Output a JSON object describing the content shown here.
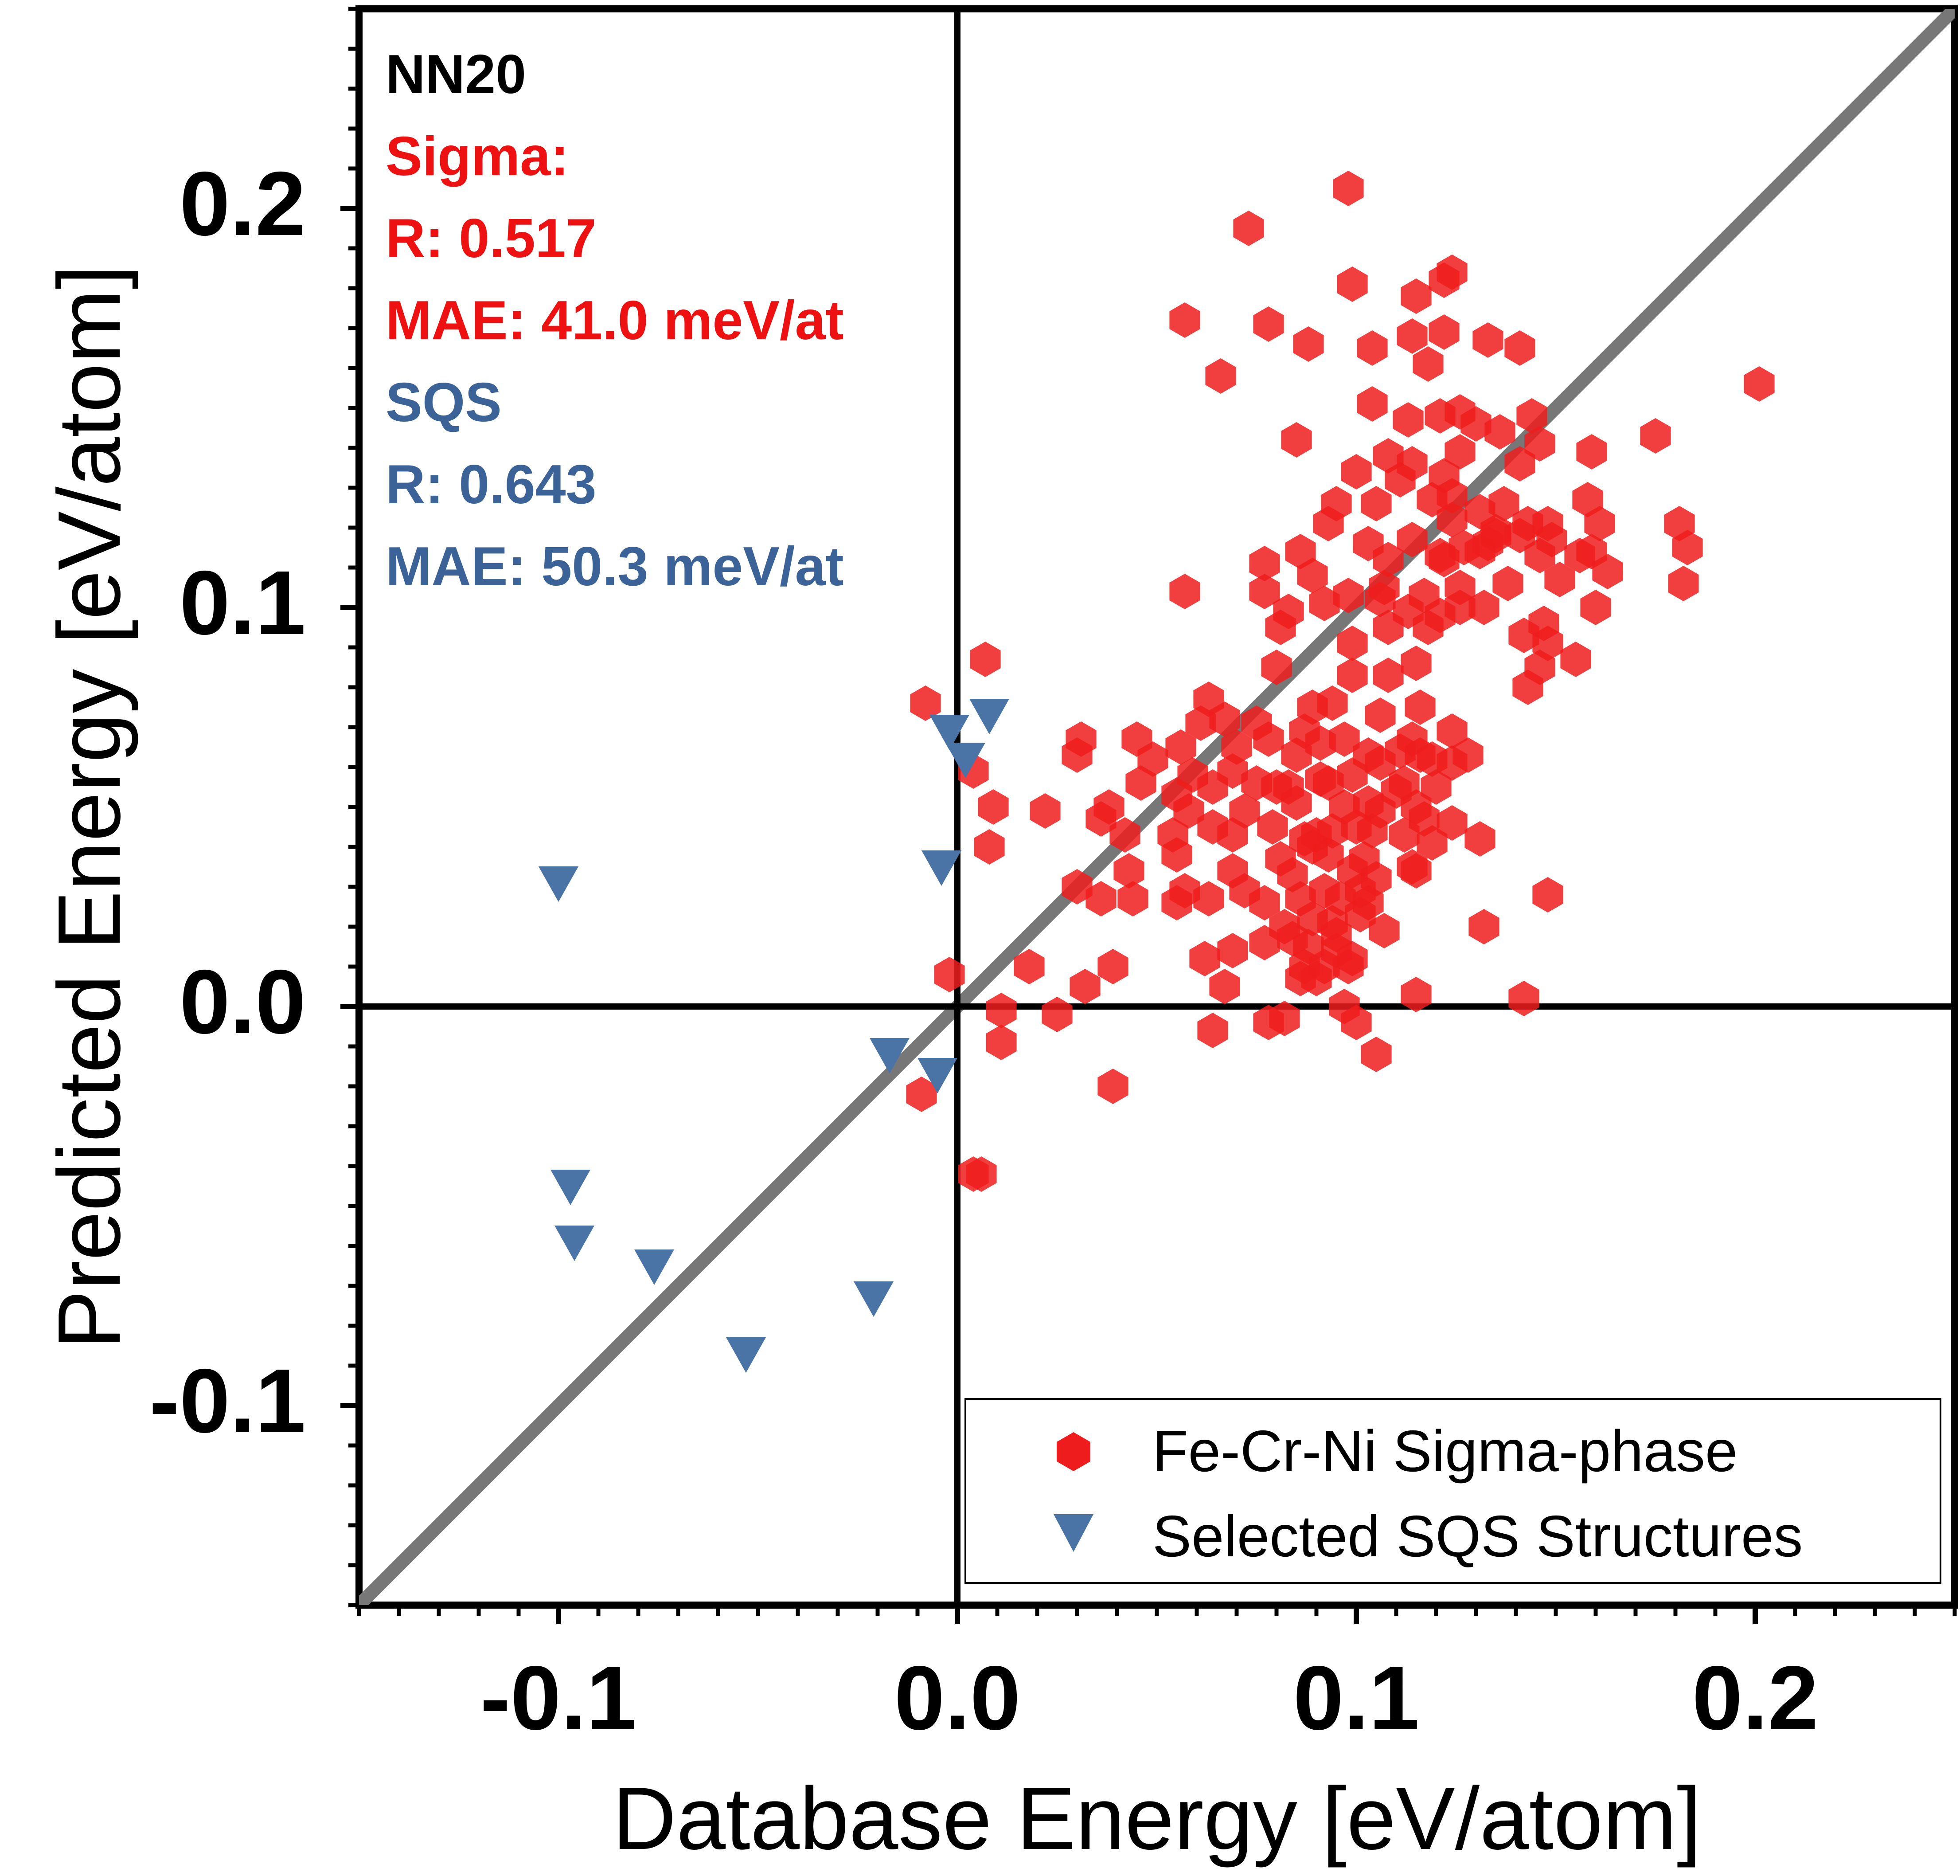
{
  "chart_data": {
    "type": "scatter",
    "title": "",
    "xlabel": "Database Energy [eV/atom]",
    "ylabel": "Predicted Energy [eV/atom]",
    "xlim": [
      -0.15,
      0.25
    ],
    "ylim": [
      -0.15,
      0.25
    ],
    "x_ticks": [
      -0.1,
      0.0,
      0.1,
      0.2
    ],
    "y_ticks": [
      -0.1,
      0.0,
      0.1,
      0.2
    ],
    "x_tick_labels": [
      "-0.1",
      "0.0",
      "0.1",
      "0.2"
    ],
    "y_tick_labels": [
      "-0.1",
      "0.0",
      "0.1",
      "0.2"
    ],
    "grid": false,
    "reference_line": "y = x",
    "legend_position": "bottom-right",
    "annotations": [
      {
        "text": "NN20",
        "color": "#000000"
      },
      {
        "text": "Sigma:",
        "color": "#ee1111"
      },
      {
        "text": "R: 0.517",
        "color": "#ee1111"
      },
      {
        "text": "MAE: 41.0 meV/at",
        "color": "#ee1111"
      },
      {
        "text": "SQS",
        "color": "#3b6397"
      },
      {
        "text": "R: 0.643",
        "color": "#3b6397"
      },
      {
        "text": "MAE: 50.3 meV/at",
        "color": "#3b6397"
      }
    ],
    "series": [
      {
        "name": "Fe-Cr-Ni Sigma-phase",
        "marker": "hexagon",
        "color": "#ee1c1c",
        "points": [
          [
            0.098,
            0.205
          ],
          [
            0.073,
            0.195
          ],
          [
            0.099,
            0.181
          ],
          [
            0.115,
            0.178
          ],
          [
            0.122,
            0.182
          ],
          [
            0.124,
            0.184
          ],
          [
            0.057,
            0.172
          ],
          [
            0.078,
            0.171
          ],
          [
            0.114,
            0.168
          ],
          [
            0.122,
            0.169
          ],
          [
            0.133,
            0.167
          ],
          [
            0.141,
            0.165
          ],
          [
            0.088,
            0.166
          ],
          [
            0.104,
            0.165
          ],
          [
            0.118,
            0.161
          ],
          [
            0.066,
            0.158
          ],
          [
            0.201,
            0.156
          ],
          [
            0.104,
            0.151
          ],
          [
            0.113,
            0.147
          ],
          [
            0.121,
            0.148
          ],
          [
            0.126,
            0.149
          ],
          [
            0.13,
            0.146
          ],
          [
            0.144,
            0.148
          ],
          [
            0.085,
            0.142
          ],
          [
            0.136,
            0.144
          ],
          [
            0.146,
            0.141
          ],
          [
            0.175,
            0.143
          ],
          [
            0.108,
            0.138
          ],
          [
            0.114,
            0.136
          ],
          [
            0.126,
            0.139
          ],
          [
            0.159,
            0.139
          ],
          [
            0.1,
            0.134
          ],
          [
            0.111,
            0.132
          ],
          [
            0.122,
            0.133
          ],
          [
            0.141,
            0.136
          ],
          [
            0.095,
            0.126
          ],
          [
            0.105,
            0.126
          ],
          [
            0.119,
            0.127
          ],
          [
            0.124,
            0.128
          ],
          [
            0.131,
            0.124
          ],
          [
            0.137,
            0.126
          ],
          [
            0.143,
            0.121
          ],
          [
            0.158,
            0.127
          ],
          [
            0.093,
            0.121
          ],
          [
            0.124,
            0.122
          ],
          [
            0.135,
            0.119
          ],
          [
            0.148,
            0.121
          ],
          [
            0.161,
            0.121
          ],
          [
            0.181,
            0.121
          ],
          [
            0.077,
            0.111
          ],
          [
            0.086,
            0.114
          ],
          [
            0.103,
            0.116
          ],
          [
            0.114,
            0.117
          ],
          [
            0.121,
            0.113
          ],
          [
            0.127,
            0.115
          ],
          [
            0.131,
            0.114
          ],
          [
            0.141,
            0.118
          ],
          [
            0.149,
            0.117
          ],
          [
            0.156,
            0.113
          ],
          [
            0.183,
            0.115
          ],
          [
            0.089,
            0.108
          ],
          [
            0.108,
            0.112
          ],
          [
            0.122,
            0.112
          ],
          [
            0.135,
            0.118
          ],
          [
            0.146,
            0.113
          ],
          [
            0.159,
            0.114
          ],
          [
            0.057,
            0.104
          ],
          [
            0.077,
            0.104
          ],
          [
            0.092,
            0.101
          ],
          [
            0.107,
            0.105
          ],
          [
            0.117,
            0.103
          ],
          [
            0.126,
            0.105
          ],
          [
            0.133,
            0.116
          ],
          [
            0.138,
            0.106
          ],
          [
            0.151,
            0.107
          ],
          [
            0.163,
            0.109
          ],
          [
            0.182,
            0.106
          ],
          [
            0.083,
            0.099
          ],
          [
            0.098,
            0.103
          ],
          [
            0.106,
            0.102
          ],
          [
            0.113,
            0.099
          ],
          [
            0.121,
            0.098
          ],
          [
            0.126,
            0.1
          ],
          [
            0.132,
            0.1
          ],
          [
            0.147,
            0.096
          ],
          [
            0.16,
            0.1
          ],
          [
            0.081,
            0.095
          ],
          [
            0.099,
            0.091
          ],
          [
            0.108,
            0.095
          ],
          [
            0.118,
            0.095
          ],
          [
            0.142,
            0.093
          ],
          [
            0.148,
            0.091
          ],
          [
            0.155,
            0.087
          ],
          [
            0.007,
            0.087
          ],
          [
            0.08,
            0.085
          ],
          [
            0.115,
            0.086
          ],
          [
            0.099,
            0.083
          ],
          [
            0.108,
            0.083
          ],
          [
            0.143,
            0.08
          ],
          [
            0.146,
            0.085
          ],
          [
            -0.008,
            0.076
          ],
          [
            0.063,
            0.077
          ],
          [
            0.075,
            0.071
          ],
          [
            0.089,
            0.075
          ],
          [
            0.094,
            0.076
          ],
          [
            0.106,
            0.073
          ],
          [
            0.116,
            0.075
          ],
          [
            0.031,
            0.067
          ],
          [
            0.061,
            0.071
          ],
          [
            0.067,
            0.072
          ],
          [
            0.078,
            0.067
          ],
          [
            0.087,
            0.069
          ],
          [
            0.097,
            0.067
          ],
          [
            0.114,
            0.067
          ],
          [
            0.124,
            0.069
          ],
          [
            0.045,
            0.067
          ],
          [
            0.049,
            0.062
          ],
          [
            0.056,
            0.065
          ],
          [
            0.07,
            0.065
          ],
          [
            0.085,
            0.063
          ],
          [
            0.091,
            0.066
          ],
          [
            0.103,
            0.063
          ],
          [
            0.111,
            0.064
          ],
          [
            0.119,
            0.062
          ],
          [
            0.128,
            0.063
          ],
          [
            0.03,
            0.063
          ],
          [
            0.059,
            0.058
          ],
          [
            0.069,
            0.059
          ],
          [
            0.075,
            0.056
          ],
          [
            0.083,
            0.055
          ],
          [
            0.091,
            0.057
          ],
          [
            0.099,
            0.058
          ],
          [
            0.106,
            0.061
          ],
          [
            0.112,
            0.056
          ],
          [
            0.116,
            0.063
          ],
          [
            0.004,
            0.059
          ],
          [
            0.046,
            0.056
          ],
          [
            0.055,
            0.053
          ],
          [
            0.064,
            0.055
          ],
          [
            0.08,
            0.055
          ],
          [
            0.093,
            0.056
          ],
          [
            0.103,
            0.051
          ],
          [
            0.11,
            0.054
          ],
          [
            0.12,
            0.055
          ],
          [
            0.124,
            0.061
          ],
          [
            0.009,
            0.05
          ],
          [
            0.022,
            0.049
          ],
          [
            0.038,
            0.05
          ],
          [
            0.058,
            0.049
          ],
          [
            0.072,
            0.049
          ],
          [
            0.085,
            0.051
          ],
          [
            0.097,
            0.05
          ],
          [
            0.106,
            0.049
          ],
          [
            0.115,
            0.05
          ],
          [
            0.036,
            0.047
          ],
          [
            0.064,
            0.045
          ],
          [
            0.079,
            0.045
          ],
          [
            0.09,
            0.043
          ],
          [
            0.1,
            0.045
          ],
          [
            0.112,
            0.043
          ],
          [
            0.117,
            0.047
          ],
          [
            0.124,
            0.046
          ],
          [
            0.042,
            0.043
          ],
          [
            0.054,
            0.043
          ],
          [
            0.069,
            0.043
          ],
          [
            0.087,
            0.042
          ],
          [
            0.094,
            0.044
          ],
          [
            0.104,
            0.044
          ],
          [
            0.119,
            0.041
          ],
          [
            0.131,
            0.042
          ],
          [
            0.008,
            0.04
          ],
          [
            0.055,
            0.038
          ],
          [
            0.081,
            0.037
          ],
          [
            0.089,
            0.04
          ],
          [
            0.093,
            0.038
          ],
          [
            0.102,
            0.037
          ],
          [
            0.114,
            0.035
          ],
          [
            0.043,
            0.034
          ],
          [
            0.069,
            0.034
          ],
          [
            0.084,
            0.033
          ],
          [
            0.099,
            0.034
          ],
          [
            0.105,
            0.032
          ],
          [
            0.115,
            0.034
          ],
          [
            0.03,
            0.03
          ],
          [
            0.057,
            0.029
          ],
          [
            0.072,
            0.029
          ],
          [
            0.092,
            0.029
          ],
          [
            0.101,
            0.029
          ],
          [
            0.148,
            0.028
          ],
          [
            0.036,
            0.027
          ],
          [
            0.044,
            0.027
          ],
          [
            0.055,
            0.026
          ],
          [
            0.063,
            0.027
          ],
          [
            0.077,
            0.026
          ],
          [
            0.086,
            0.027
          ],
          [
            0.096,
            0.027
          ],
          [
            0.103,
            0.026
          ],
          [
            0.089,
            0.022
          ],
          [
            0.094,
            0.021
          ],
          [
            0.101,
            0.023
          ],
          [
            0.082,
            0.02
          ],
          [
            0.095,
            0.018
          ],
          [
            0.107,
            0.019
          ],
          [
            0.132,
            0.02
          ],
          [
            0.069,
            0.014
          ],
          [
            0.077,
            0.016
          ],
          [
            0.084,
            0.017
          ],
          [
            0.088,
            0.015
          ],
          [
            0.095,
            0.014
          ],
          [
            0.099,
            0.012
          ],
          [
            0.018,
            0.01
          ],
          [
            0.039,
            0.01
          ],
          [
            0.062,
            0.012
          ],
          [
            0.087,
            0.01
          ],
          [
            0.092,
            0.01
          ],
          [
            0.098,
            0.01
          ],
          [
            -0.002,
            0.008
          ],
          [
            0.032,
            0.005
          ],
          [
            0.067,
            0.005
          ],
          [
            0.086,
            0.007
          ],
          [
            0.09,
            0.007
          ],
          [
            0.115,
            0.003
          ],
          [
            0.142,
            0.002
          ],
          [
            0.097,
            0.0
          ],
          [
            0.011,
            -0.001
          ],
          [
            0.025,
            -0.002
          ],
          [
            0.078,
            -0.004
          ],
          [
            0.082,
            -0.003
          ],
          [
            0.1,
            -0.004
          ],
          [
            0.011,
            -0.009
          ],
          [
            0.064,
            -0.006
          ],
          [
            0.105,
            -0.012
          ],
          [
            0.039,
            -0.02
          ],
          [
            -0.009,
            -0.022
          ],
          [
            0.004,
            -0.042
          ],
          [
            0.006,
            -0.042
          ]
        ]
      },
      {
        "name": "Selected SQS Structures",
        "marker": "triangle-down",
        "color": "#4a74a6",
        "points": [
          [
            -0.1,
            0.032
          ],
          [
            -0.002,
            0.07
          ],
          [
            0.008,
            0.074
          ],
          [
            0.002,
            0.063
          ],
          [
            -0.004,
            0.036
          ],
          [
            -0.017,
            -0.011
          ],
          [
            -0.005,
            -0.016
          ],
          [
            -0.097,
            -0.044
          ],
          [
            -0.096,
            -0.058
          ],
          [
            -0.076,
            -0.064
          ],
          [
            -0.021,
            -0.072
          ],
          [
            -0.053,
            -0.086
          ]
        ]
      }
    ]
  }
}
